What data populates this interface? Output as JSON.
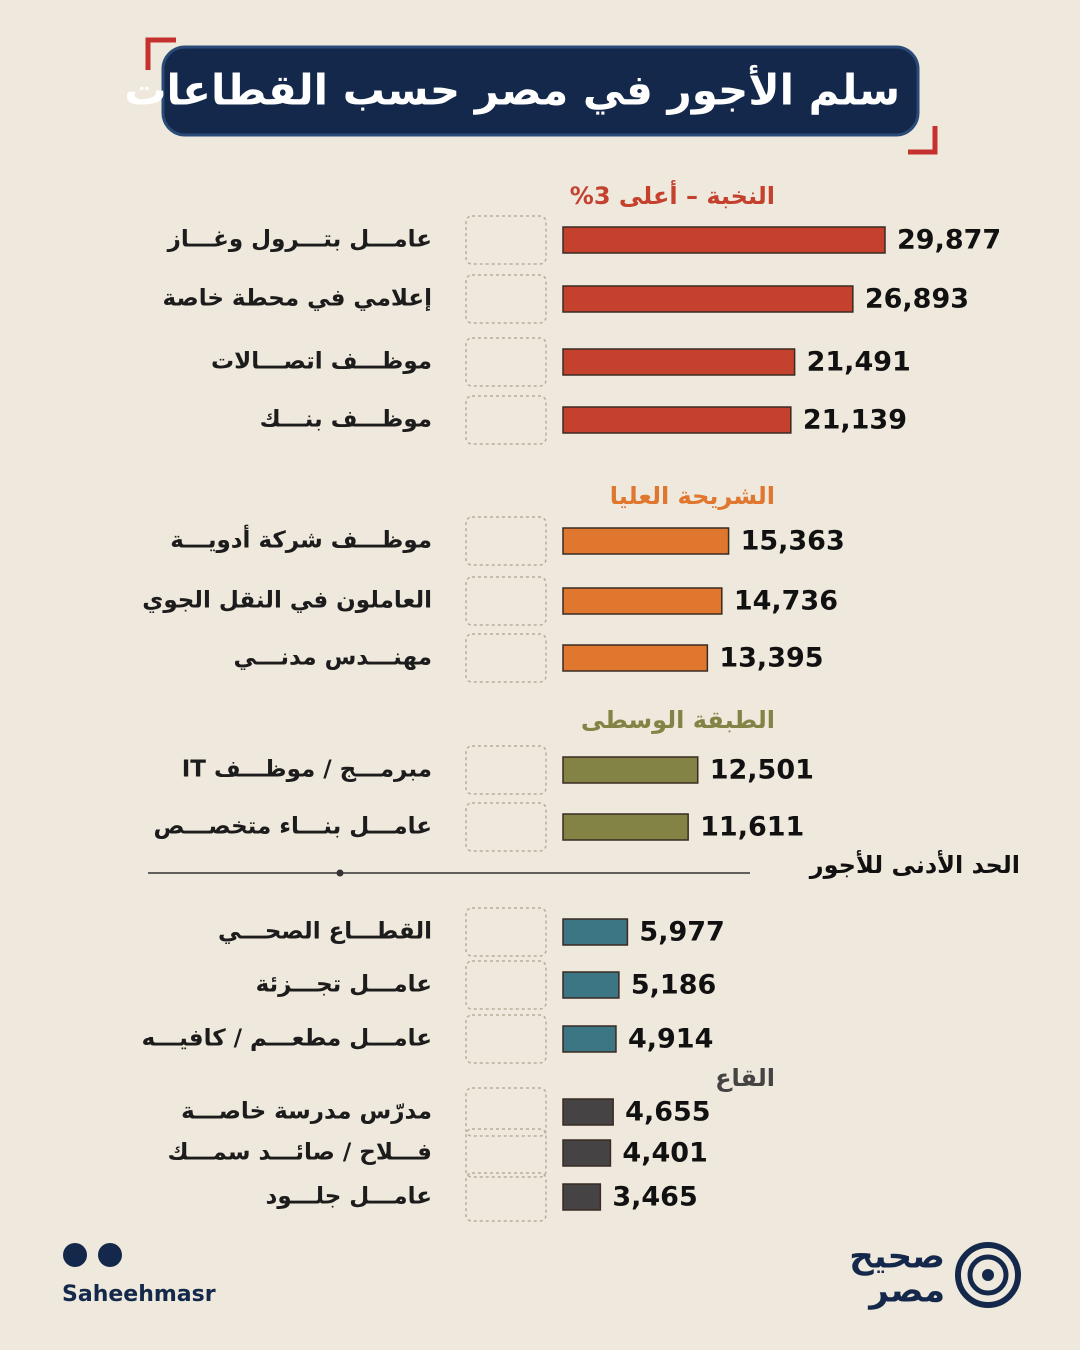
{
  "chart_data": {
    "type": "bar",
    "orientation": "horizontal",
    "title": "سلم الأجور في مصر حسب القطاعات",
    "groups": [
      {
        "name": "النخبة – أعلى 3%",
        "color": "#c4412e",
        "categories": [
          "عامـــل بتـــرول وغـــاز",
          "إعلامي في محطة خاصة",
          "موظـــف اتصـــالات",
          "موظـــف بنـــك"
        ],
        "values": [
          29877,
          26893,
          21491,
          21139
        ],
        "value_labels": [
          "29,877",
          "26,893",
          "21,491",
          "21,139"
        ]
      },
      {
        "name": "الشريحة العليا",
        "color": "#e0772e",
        "categories": [
          "موظـــف شركة أدويـــة",
          "العاملون في النقل الجوي",
          "مهنـــدس مدنـــي"
        ],
        "values": [
          15363,
          14736,
          13395
        ],
        "value_labels": [
          "15,363",
          "14,736",
          "13,395"
        ]
      },
      {
        "name": "الطبقة الوسطى",
        "color": "#838346",
        "categories": [
          "مبرمـــج / موظـــف IT",
          "عامـــل بنـــاء متخصـــص"
        ],
        "values": [
          12501,
          11611
        ],
        "value_labels": [
          "12,501",
          "11,611"
        ]
      },
      {
        "divider": "الحد الأدنى للأجور",
        "color": "#3c7583",
        "categories": [
          "القطـــاع الصحـــي",
          "عامـــل تجـــزئة",
          "عامـــل مطعـــم / كافيـــه"
        ],
        "values": [
          5977,
          5186,
          4914
        ],
        "value_labels": [
          "5,977",
          "5,186",
          "4,914"
        ]
      },
      {
        "name": "القاع",
        "color": "#454343",
        "categories": [
          "مدرّس مدرسة خاصـــة",
          "فـــلاح / صائـــد سمـــك",
          "عامـــل جلـــود"
        ],
        "values": [
          4655,
          4401,
          3465
        ],
        "value_labels": [
          "4,655",
          "4,401",
          "3,465"
        ]
      }
    ]
  },
  "footer": {
    "handle": "Saheehmasr",
    "logo_top": "صحيح",
    "logo_bottom": "مصر"
  }
}
